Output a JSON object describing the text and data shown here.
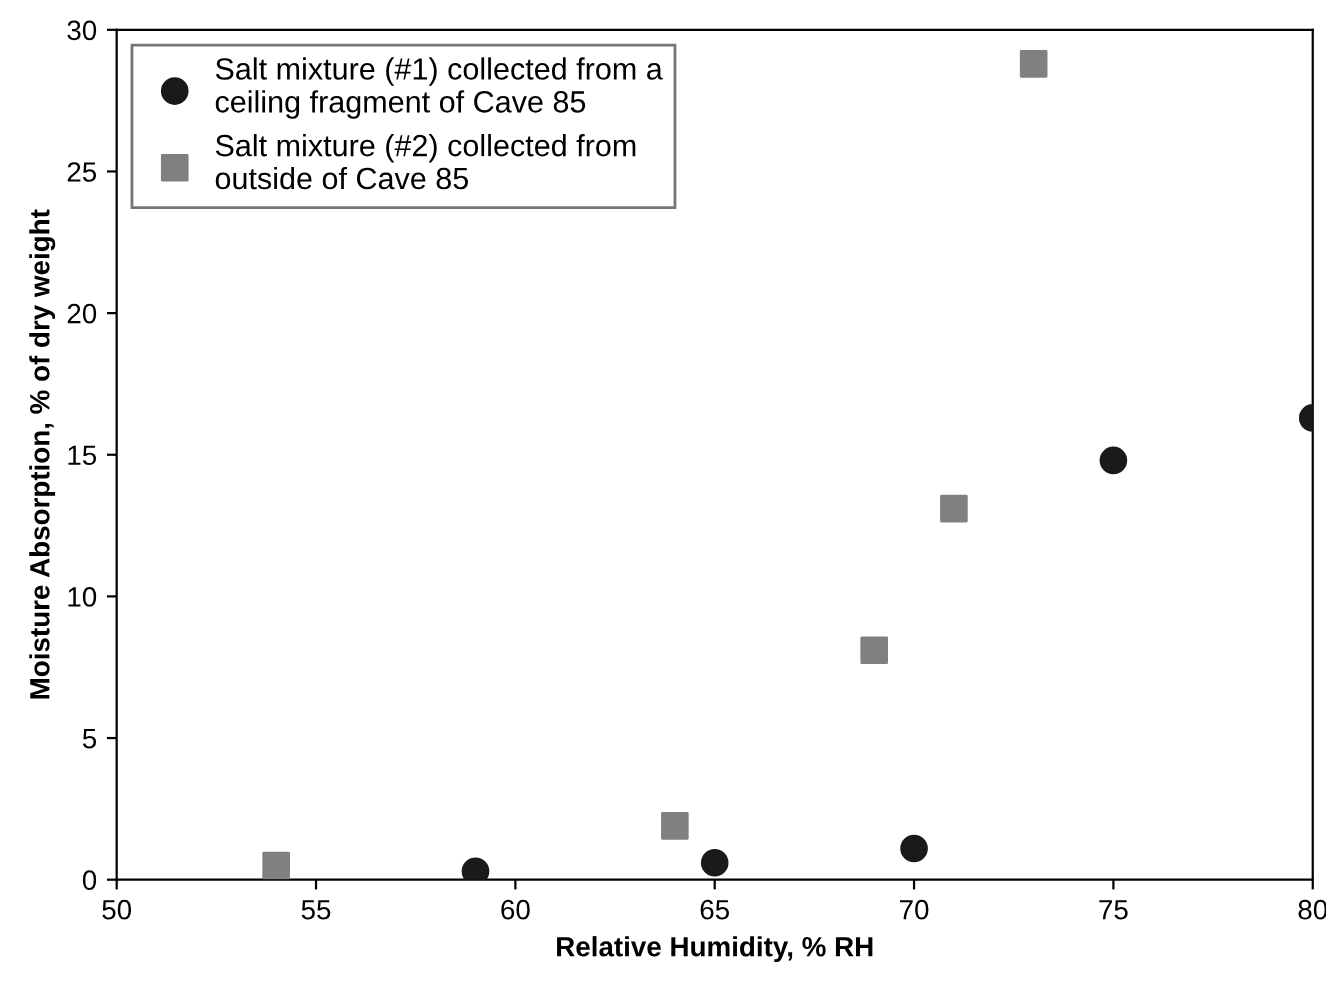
{
  "chart_data": {
    "type": "scatter",
    "xlabel": "Relative Humidity, % RH",
    "ylabel": "Moisture Absorption, % of dry weight",
    "series": [
      {
        "name": "Salt mixture (#1) collected from a ceiling fragment of Cave 85",
        "color": "#1a1a1a",
        "marker": "circle",
        "x": [
          59,
          65,
          70,
          75,
          80
        ],
        "values": [
          0.3,
          0.6,
          1.1,
          14.8,
          16.3
        ]
      },
      {
        "name": "Salt mixture (#2) collected from outside of Cave 85",
        "color": "#808080",
        "marker": "square",
        "x": [
          54,
          64,
          69,
          71,
          73
        ],
        "values": [
          0.5,
          1.9,
          8.1,
          13.1,
          28.8
        ]
      }
    ],
    "xlim": [
      50,
      80
    ],
    "xticks": [
      50,
      55,
      60,
      65,
      70,
      75,
      80
    ],
    "ylim": [
      0,
      30
    ],
    "yticks": [
      0,
      5,
      10,
      15,
      20,
      25,
      30
    ],
    "grid": false,
    "legend": "top left"
  }
}
